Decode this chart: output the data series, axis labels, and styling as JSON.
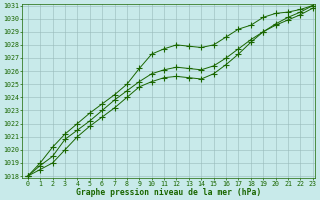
{
  "x": [
    0,
    1,
    2,
    3,
    4,
    5,
    6,
    7,
    8,
    9,
    10,
    11,
    12,
    13,
    14,
    15,
    16,
    17,
    18,
    19,
    20,
    21,
    22,
    23
  ],
  "line1": [
    1018.0,
    1019.0,
    1020.2,
    1021.2,
    1022.0,
    1022.8,
    1023.5,
    1024.2,
    1025.0,
    1026.2,
    1027.3,
    1027.7,
    1028.0,
    1027.9,
    1027.8,
    1028.0,
    1028.6,
    1029.2,
    1029.5,
    1030.1,
    1030.4,
    1030.5,
    1030.7,
    1031.0
  ],
  "line2": [
    1018.0,
    1018.8,
    1019.5,
    1020.8,
    1021.5,
    1022.2,
    1023.0,
    1023.8,
    1024.5,
    1025.2,
    1025.8,
    1026.1,
    1026.3,
    1026.2,
    1026.1,
    1026.4,
    1027.0,
    1027.7,
    1028.4,
    1029.0,
    1029.5,
    1029.9,
    1030.3,
    1030.8
  ],
  "line3": [
    1018.0,
    1018.5,
    1019.0,
    1020.0,
    1021.0,
    1021.8,
    1022.5,
    1023.2,
    1024.0,
    1024.8,
    1025.2,
    1025.5,
    1025.6,
    1025.5,
    1025.4,
    1025.8,
    1026.5,
    1027.3,
    1028.2,
    1029.0,
    1029.6,
    1030.1,
    1030.5,
    1031.0
  ],
  "ylim": [
    1018,
    1031
  ],
  "xlim": [
    0,
    23
  ],
  "yticks": [
    1018,
    1019,
    1020,
    1021,
    1022,
    1023,
    1024,
    1025,
    1026,
    1027,
    1028,
    1029,
    1030,
    1031
  ],
  "xticks": [
    0,
    1,
    2,
    3,
    4,
    5,
    6,
    7,
    8,
    9,
    10,
    11,
    12,
    13,
    14,
    15,
    16,
    17,
    18,
    19,
    20,
    21,
    22,
    23
  ],
  "xlabel": "Graphe pression niveau de la mer (hPa)",
  "line_color": "#1a6600",
  "bg_color": "#c8eaea",
  "grid_color": "#99bbbb",
  "marker": "P",
  "marker_size": 2.0,
  "linewidth": 0.7,
  "tick_fontsize": 4.8,
  "xlabel_fontsize": 5.8,
  "fig_width": 3.2,
  "fig_height": 2.0,
  "fig_dpi": 100
}
